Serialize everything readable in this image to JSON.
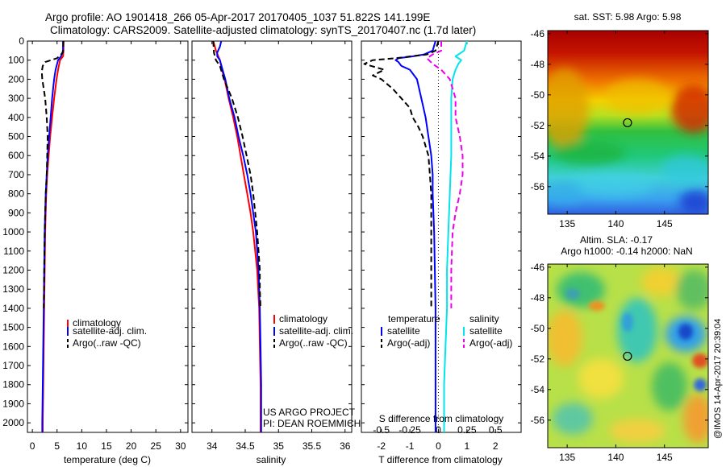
{
  "title": {
    "line1": "Argo profile: AO 1901418_266 05-Apr-2017 20170405_1037 51.822S 141.199E",
    "line2": "Climatology: CARS2009. Satellite-adjusted climatology: synTS_20170407.nc (1.7d later)"
  },
  "credits": {
    "line1": "US ARGO PROJECT",
    "line2": "PI: DEAN ROEMMICH"
  },
  "watermark": "@IMOS 14-Apr-2017 20:39:04",
  "colors": {
    "climatology": "#ff0000",
    "satellite": "#0000ff",
    "argo": "#000000",
    "sal_sat": "#00e5ee",
    "sal_argo": "#ee00ee"
  },
  "chart_data": [
    {
      "type": "line",
      "xlabel": "temperature (deg C)",
      "ylabel": "",
      "xlim": [
        -1,
        31.5
      ],
      "ylim": [
        2050,
        0
      ],
      "xticks": [
        0,
        5,
        10,
        15,
        20,
        25,
        30
      ],
      "yticks": [
        0,
        100,
        200,
        300,
        400,
        500,
        600,
        700,
        800,
        900,
        1000,
        1100,
        1200,
        1300,
        1400,
        1500,
        1600,
        1700,
        1800,
        1900,
        2000
      ],
      "legend": {
        "position": "center-right",
        "entries": [
          "climatology",
          "satellite-adj. clim.",
          "Argo(..raw -QC)"
        ]
      },
      "series": [
        {
          "name": "climatology",
          "style": "solid",
          "depth": [
            0,
            50,
            80,
            100,
            150,
            200,
            300,
            400,
            500,
            600,
            700,
            800,
            1000,
            1200,
            1400,
            1600,
            1800,
            2000,
            2050
          ],
          "values": [
            6.3,
            6.3,
            6.2,
            5.6,
            5.2,
            4.9,
            4.4,
            4.0,
            3.6,
            3.3,
            3.0,
            2.8,
            2.6,
            2.5,
            2.4,
            2.3,
            2.2,
            2.1,
            2.1
          ]
        },
        {
          "name": "satellite-adj. clim.",
          "style": "solid",
          "depth": [
            0,
            50,
            80,
            100,
            150,
            200,
            300,
            400,
            500,
            600,
            700,
            800,
            1000,
            1200,
            1400,
            1600,
            1800,
            2000,
            2050
          ],
          "values": [
            6.2,
            6.2,
            5.8,
            5.2,
            4.7,
            4.4,
            4.0,
            3.7,
            3.4,
            3.1,
            2.9,
            2.7,
            2.5,
            2.4,
            2.3,
            2.2,
            2.1,
            2.0,
            2.0
          ]
        },
        {
          "name": "Argo(..raw -QC)",
          "style": "dashed",
          "depth": [
            0,
            60,
            90,
            100,
            110,
            130,
            160,
            200,
            250,
            300,
            400,
            500,
            600,
            700,
            800,
            1000,
            1200,
            1400
          ],
          "values": [
            6.3,
            6.2,
            5.0,
            3.8,
            2.6,
            2.1,
            1.9,
            2.0,
            2.3,
            2.6,
            2.9,
            3.1,
            3.0,
            2.9,
            2.7,
            2.5,
            2.4,
            2.3
          ]
        }
      ]
    },
    {
      "type": "line",
      "xlabel": "salinity",
      "ylabel": "",
      "xlim": [
        33.7,
        36.1
      ],
      "ylim": [
        2050,
        0
      ],
      "xticks": [
        34,
        34.5,
        35,
        35.5,
        36
      ],
      "legend": {
        "position": "center-right",
        "entries": [
          "climatology",
          "satellite-adj. clim.",
          "Argo(..raw -QC)"
        ]
      },
      "series": [
        {
          "name": "climatology",
          "style": "solid",
          "depth": [
            0,
            50,
            100,
            150,
            200,
            300,
            400,
            500,
            600,
            700,
            800,
            900,
            1000,
            1200,
            1400,
            1600,
            1800,
            2000,
            2050
          ],
          "values": [
            34.02,
            34.06,
            34.12,
            34.15,
            34.19,
            34.25,
            34.32,
            34.38,
            34.43,
            34.48,
            34.53,
            34.58,
            34.62,
            34.68,
            34.71,
            34.72,
            34.73,
            34.73,
            34.73
          ]
        },
        {
          "name": "satellite-adj. clim.",
          "style": "solid",
          "depth": [
            0,
            30,
            60,
            80,
            100,
            150,
            200,
            300,
            400,
            500,
            600,
            700,
            800,
            900,
            1000,
            1200,
            1400,
            1600,
            1800,
            2000,
            2050
          ],
          "values": [
            34.14,
            34.12,
            34.08,
            34.08,
            34.12,
            34.16,
            34.2,
            34.26,
            34.34,
            34.4,
            34.47,
            34.53,
            34.58,
            34.62,
            34.66,
            34.7,
            34.72,
            34.73,
            34.74,
            34.74,
            34.74
          ]
        },
        {
          "name": "Argo(..raw -QC)",
          "style": "dashed",
          "depth": [
            0,
            60,
            100,
            130,
            200,
            300,
            400,
            500,
            600,
            700,
            800,
            900,
            1000,
            1100,
            1200,
            1300,
            1400
          ],
          "values": [
            34.02,
            34.03,
            34.06,
            34.12,
            34.18,
            34.3,
            34.39,
            34.46,
            34.52,
            34.58,
            34.62,
            34.65,
            34.68,
            34.7,
            34.72,
            34.72,
            34.73
          ]
        }
      ]
    },
    {
      "type": "line",
      "xlabel": "T difference from climatology",
      "secondary_xlabel": "S difference from climatology",
      "xlim": [
        -2.7,
        2.9
      ],
      "ylim": [
        2050,
        0
      ],
      "xticks": [
        -2,
        -1,
        0,
        1,
        2
      ],
      "secondary_xticks": [
        {
          "value": -2,
          "label": "-0.5"
        },
        {
          "value": -1,
          "label": "-0.25"
        },
        {
          "value": 0,
          "label": "0"
        },
        {
          "value": 1,
          "label": "0.25"
        },
        {
          "value": 2,
          "label": "0.5"
        }
      ],
      "legend": {
        "position": "center",
        "headers": [
          "temperature",
          "salinity"
        ],
        "entries": [
          "satellite",
          "Argo(-adj)",
          "satellite",
          "Argo(-adj)"
        ]
      },
      "series": [
        {
          "name": "temperature satellite",
          "style": "solid",
          "color_key": "satellite",
          "depth": [
            0,
            50,
            70,
            80,
            90,
            100,
            110,
            130,
            150,
            200,
            300,
            400,
            500,
            600,
            700,
            800,
            1000,
            1400,
            2000,
            2050
          ],
          "values": [
            -0.1,
            -0.2,
            -0.5,
            -0.9,
            -1.4,
            -1.5,
            -1.4,
            -1.3,
            -1.0,
            -0.75,
            -0.6,
            -0.45,
            -0.35,
            -0.25,
            -0.2,
            -0.2,
            -0.15,
            -0.1,
            -0.1,
            -0.1
          ]
        },
        {
          "name": "temperature Argo(-adj)",
          "style": "dashed",
          "color_key": "argo",
          "depth": [
            0,
            50,
            70,
            90,
            100,
            120,
            150,
            180,
            200,
            250,
            300,
            350,
            400,
            450,
            500,
            600,
            700,
            800,
            1000,
            1200,
            1400
          ],
          "values": [
            0,
            -0.1,
            -0.4,
            -1.5,
            -2.3,
            -2.6,
            -1.9,
            -2.3,
            -2.0,
            -1.6,
            -1.3,
            -1.0,
            -0.9,
            -0.7,
            -0.55,
            -0.35,
            -0.3,
            -0.25,
            -0.25,
            -0.25,
            -0.25
          ]
        },
        {
          "name": "salinity satellite",
          "style": "solid",
          "color_key": "sal_sat",
          "depth": [
            0,
            50,
            80,
            100,
            120,
            150,
            200,
            300,
            400,
            600,
            800,
            1000,
            1200,
            1400,
            1600,
            1800,
            2000,
            2050
          ],
          "values": [
            1.0,
            0.9,
            0.6,
            0.8,
            0.7,
            0.6,
            0.5,
            0.45,
            0.45,
            0.45,
            0.4,
            0.35,
            0.3,
            0.3,
            0.25,
            0.2,
            0.2,
            0.2
          ]
        },
        {
          "name": "salinity Argo(-adj)",
          "style": "dashed",
          "color_key": "sal_argo",
          "depth": [
            0,
            50,
            70,
            90,
            120,
            150,
            200,
            300,
            400,
            500,
            600,
            700,
            800,
            900,
            1000,
            1200,
            1400
          ],
          "values": [
            0.1,
            0.1,
            -0.2,
            -0.4,
            -0.2,
            0.1,
            0.4,
            0.6,
            0.6,
            0.75,
            0.85,
            0.85,
            0.75,
            0.6,
            0.5,
            0.45,
            0.45
          ]
        }
      ]
    },
    {
      "type": "heatmap",
      "title": "sat. SST: 5.98  Argo: 5.98",
      "xlim": [
        133,
        149.5
      ],
      "ylim": [
        -57.8,
        -45.8
      ],
      "xticks": [
        135,
        140,
        145
      ],
      "yticks": [
        -46,
        -48,
        -50,
        -52,
        -54,
        -56
      ],
      "marker": {
        "lon": 141.199,
        "lat": -51.822
      }
    },
    {
      "type": "heatmap",
      "title": "Altim. SLA: -0.17",
      "subtitle": "Argo h1000: -0.14 h2000: NaN",
      "xlim": [
        133,
        149.5
      ],
      "ylim": [
        -57.8,
        -45.8
      ],
      "xticks": [
        135,
        140,
        145
      ],
      "yticks": [
        -46,
        -48,
        -50,
        -52,
        -54,
        -56
      ],
      "marker": {
        "lon": 141.199,
        "lat": -51.822
      }
    }
  ]
}
